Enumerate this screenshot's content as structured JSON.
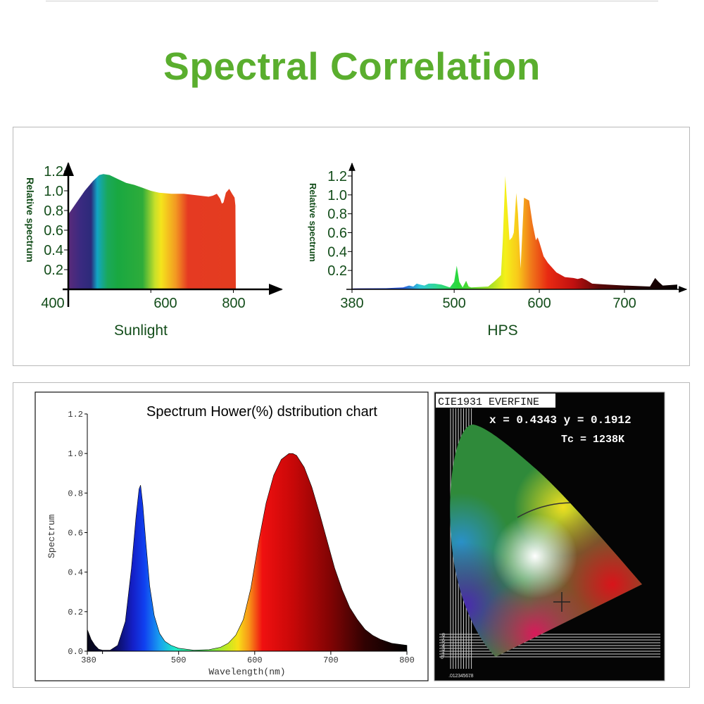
{
  "page": {
    "title": "Spectral Correlation",
    "title_color": "#5aae2e"
  },
  "chart_data": [
    {
      "id": "sunlight",
      "type": "area",
      "title": "Sunlight",
      "ylabel": "Relative spectrum",
      "xlabel": "",
      "xlim": [
        400,
        820
      ],
      "ylim": [
        0,
        1.2
      ],
      "xticks": [
        400,
        600,
        800
      ],
      "yticks": [
        0.2,
        0.4,
        0.6,
        0.8,
        1.0,
        1.2
      ],
      "ytick_labels": [
        "0.2",
        "0.4",
        "0.6",
        "0.8",
        "1.0",
        "1.2"
      ],
      "xtick_labels": [
        "400",
        "600",
        "800"
      ],
      "x": [
        400,
        420,
        440,
        460,
        475,
        485,
        500,
        520,
        540,
        560,
        580,
        600,
        620,
        650,
        680,
        700,
        720,
        740,
        750,
        760,
        768,
        772,
        776,
        782,
        790,
        797,
        803,
        805,
        806
      ],
      "values": [
        0.76,
        0.88,
        1.0,
        1.1,
        1.16,
        1.17,
        1.16,
        1.12,
        1.08,
        1.06,
        1.03,
        1.0,
        0.98,
        0.97,
        0.97,
        0.96,
        0.95,
        0.94,
        0.95,
        0.97,
        0.92,
        0.87,
        0.88,
        0.98,
        1.02,
        0.97,
        0.93,
        0.85,
        0.0
      ],
      "gradient_stops": [
        [
          400,
          "#5a2a7a"
        ],
        [
          430,
          "#3a2a80"
        ],
        [
          455,
          "#2c2a7a"
        ],
        [
          470,
          "#12a6c4"
        ],
        [
          495,
          "#1aa85a"
        ],
        [
          520,
          "#19a841"
        ],
        [
          580,
          "#2eac3a"
        ],
        [
          610,
          "#c8e02a"
        ],
        [
          625,
          "#f4e41c"
        ],
        [
          660,
          "#f39a22"
        ],
        [
          690,
          "#e53a22"
        ],
        [
          800,
          "#e43c20"
        ]
      ]
    },
    {
      "id": "hps",
      "type": "area",
      "title": "HPS",
      "ylabel": "Relative spectrum",
      "xlabel": "",
      "xlim": [
        380,
        765
      ],
      "ylim": [
        0,
        1.2
      ],
      "xticks": [
        380,
        500,
        600,
        700
      ],
      "xtick_labels": [
        "380",
        "500",
        "600",
        "700"
      ],
      "yticks": [
        0.2,
        0.4,
        0.6,
        0.8,
        1.0,
        1.2
      ],
      "ytick_labels": [
        "0.2",
        "0.4",
        "0.6",
        "0.8",
        "1.0",
        "1.2"
      ],
      "x": [
        381,
        420,
        440,
        447,
        452,
        456,
        460,
        465,
        470,
        477,
        485,
        495,
        500,
        503,
        506,
        510,
        514,
        517,
        520,
        540,
        548,
        555,
        557,
        560,
        563,
        565,
        568,
        570,
        573,
        575,
        577,
        578,
        580,
        582,
        588,
        592,
        596,
        598,
        600,
        605,
        610,
        620,
        630,
        640,
        645,
        650,
        655,
        662,
        680,
        700,
        730,
        736,
        740,
        745,
        762,
        762
      ],
      "values": [
        0.01,
        0.012,
        0.02,
        0.04,
        0.03,
        0.06,
        0.05,
        0.04,
        0.06,
        0.06,
        0.05,
        0.02,
        0.08,
        0.25,
        0.08,
        0.02,
        0.09,
        0.03,
        0.02,
        0.03,
        0.09,
        0.15,
        0.5,
        1.2,
        0.8,
        0.52,
        0.55,
        0.6,
        1.02,
        0.8,
        0.4,
        0.22,
        0.6,
        0.97,
        0.94,
        0.7,
        0.52,
        0.55,
        0.5,
        0.35,
        0.28,
        0.18,
        0.13,
        0.12,
        0.11,
        0.12,
        0.1,
        0.06,
        0.05,
        0.04,
        0.03,
        0.12,
        0.08,
        0.04,
        0.05,
        0.0
      ],
      "gradient_stops": [
        [
          380,
          "#1a1a8a"
        ],
        [
          440,
          "#2a5ad8"
        ],
        [
          460,
          "#30c8d8"
        ],
        [
          480,
          "#30d890"
        ],
        [
          505,
          "#2ad838"
        ],
        [
          540,
          "#9ade28"
        ],
        [
          560,
          "#f5f01a"
        ],
        [
          575,
          "#f8c81a"
        ],
        [
          590,
          "#f07a1a"
        ],
        [
          610,
          "#e82a12"
        ],
        [
          640,
          "#c01010"
        ],
        [
          670,
          "#5a0808"
        ],
        [
          720,
          "#200404"
        ],
        [
          765,
          "#050000"
        ]
      ]
    },
    {
      "id": "led",
      "type": "area",
      "title": "Spectrum Hower(%) dstribution chart",
      "xlabel": "Wavelength(nm)",
      "ylabel": "Spectrum",
      "xlim": [
        380,
        800
      ],
      "ylim": [
        0,
        1.2
      ],
      "xticks": [
        380,
        500,
        600,
        700,
        800
      ],
      "xtick_labels": [
        "380",
        "500",
        "600",
        "700",
        "800"
      ],
      "yticks": [
        0.0,
        0.2,
        0.4,
        0.6,
        0.8,
        1.0,
        1.2
      ],
      "ytick_labels": [
        "0.0",
        "0.2",
        "0.4",
        "0.6",
        "0.8",
        "1.0",
        "1.2"
      ],
      "x": [
        380,
        385,
        390,
        395,
        400,
        410,
        420,
        430,
        438,
        444,
        448,
        450,
        453,
        457,
        462,
        468,
        475,
        482,
        490,
        500,
        520,
        540,
        555,
        565,
        575,
        585,
        595,
        605,
        615,
        625,
        635,
        645,
        650,
        655,
        665,
        675,
        685,
        695,
        705,
        715,
        725,
        735,
        745,
        755,
        765,
        780,
        800
      ],
      "values": [
        0.11,
        0.06,
        0.03,
        0.01,
        0.005,
        0.005,
        0.03,
        0.15,
        0.42,
        0.68,
        0.82,
        0.84,
        0.74,
        0.55,
        0.33,
        0.18,
        0.09,
        0.05,
        0.03,
        0.015,
        0.005,
        0.008,
        0.02,
        0.04,
        0.08,
        0.16,
        0.32,
        0.55,
        0.75,
        0.89,
        0.97,
        1.0,
        1.0,
        0.99,
        0.93,
        0.83,
        0.7,
        0.56,
        0.42,
        0.31,
        0.22,
        0.16,
        0.11,
        0.08,
        0.06,
        0.04,
        0.03
      ],
      "gradient_stops": [
        [
          380,
          "#080818"
        ],
        [
          415,
          "#0a0a50"
        ],
        [
          440,
          "#1420c8"
        ],
        [
          455,
          "#1040f0"
        ],
        [
          475,
          "#18a0f0"
        ],
        [
          495,
          "#20e8c8"
        ],
        [
          530,
          "#40e860"
        ],
        [
          565,
          "#c8e820"
        ],
        [
          578,
          "#f8e018"
        ],
        [
          592,
          "#f89818"
        ],
        [
          610,
          "#f01010"
        ],
        [
          650,
          "#c80808"
        ],
        [
          700,
          "#800404"
        ],
        [
          745,
          "#300202"
        ],
        [
          800,
          "#000000"
        ]
      ]
    }
  ],
  "cie": {
    "header": "CIE1931 EVERFINE",
    "coords": "x = 0.4343 y = 0.1912",
    "color_temp": "Tc = 1238K",
    "point": {
      "x": 0.4343,
      "y": 0.1912
    },
    "x_ticks": [
      ".0",
      ".1",
      ".2",
      ".3",
      ".4",
      ".5",
      ".6",
      ".7",
      ".8"
    ],
    "y_ticks": [
      "0",
      ".1",
      ".2",
      ".3",
      ".4",
      ".5",
      ".6",
      ".7",
      ".8"
    ]
  }
}
